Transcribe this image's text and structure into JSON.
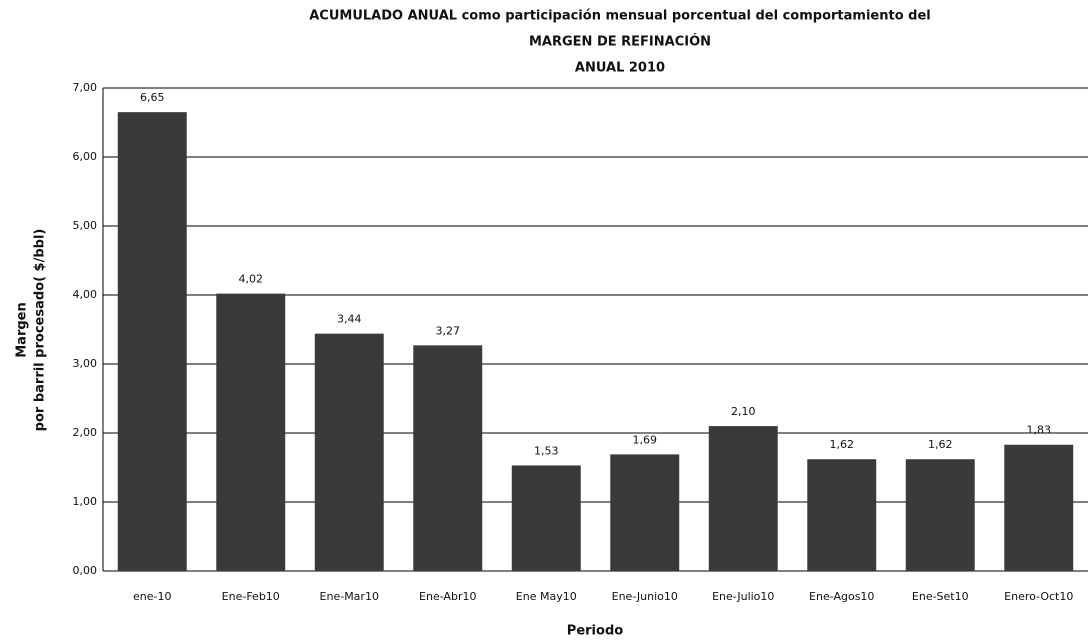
{
  "chart_data": {
    "type": "bar",
    "title": [
      "ACUMULADO ANUAL como participación mensual porcentual del comportamiento del",
      "MARGEN DE REFINACIÓN",
      "ANUAL 2010"
    ],
    "ylabel": [
      "Margen",
      "por barril procesado( $/bbl)"
    ],
    "xlabel": "Periodo",
    "categories": [
      "ene-10",
      "Ene-Feb10",
      "Ene-Mar10",
      "Ene-Abr10",
      "Ene May10",
      "Ene-Junio10",
      "Ene-Julio10",
      "Ene-Agos10",
      "Ene-Set10",
      "Enero-Oct10"
    ],
    "values": [
      6.65,
      4.02,
      3.44,
      3.27,
      1.53,
      1.69,
      2.1,
      1.62,
      1.62,
      1.83
    ],
    "value_labels": [
      "6,65",
      "4,02",
      "3,44",
      "3,27",
      "1,53",
      "1,69",
      "2,10",
      "1,62",
      "1,62",
      "1,83"
    ],
    "color": "#3a3a3a",
    "ylim": [
      0,
      7
    ],
    "yticks": [
      {
        "value": 0,
        "label": "0,00"
      },
      {
        "value": 1,
        "label": "1,00"
      },
      {
        "value": 2,
        "label": "2,00"
      },
      {
        "value": 3,
        "label": "3,00"
      },
      {
        "value": 4,
        "label": "4,00"
      },
      {
        "value": 5,
        "label": "5,00"
      },
      {
        "value": 6,
        "label": "6,00"
      },
      {
        "value": 7,
        "label": "7,00"
      }
    ],
    "grid": true
  }
}
